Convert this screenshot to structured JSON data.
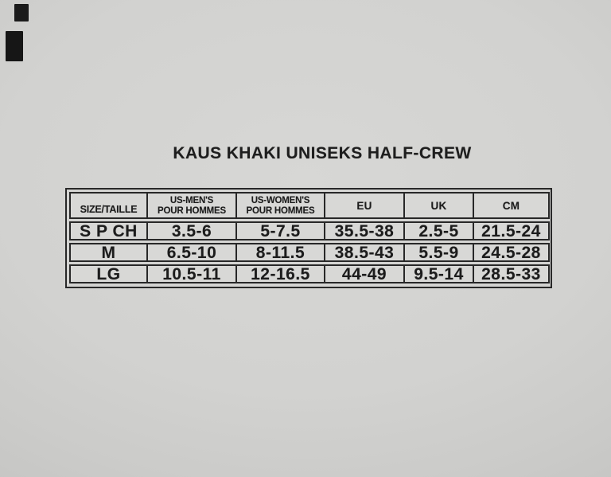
{
  "title": "KAUS KHAKI UNISEKS HALF-CREW",
  "table": {
    "headers": [
      {
        "line1": "SIZE/TAILLE",
        "line2": ""
      },
      {
        "line1": "US-MEN'S",
        "line2": "POUR HOMMES"
      },
      {
        "line1": "US-WOMEN'S",
        "line2": "POUR HOMMES"
      },
      {
        "line1": "EU",
        "line2": ""
      },
      {
        "line1": "UK",
        "line2": ""
      },
      {
        "line1": "CM",
        "line2": ""
      }
    ],
    "rows": [
      {
        "cells": [
          "S P CH",
          "3.5-6",
          "5-7.5",
          "35.5-38",
          "2.5-5",
          "21.5-24"
        ]
      },
      {
        "cells": [
          "M",
          "6.5-10",
          "8-11.5",
          "38.5-43",
          "5.5-9",
          "24.5-28"
        ]
      },
      {
        "cells": [
          "LG",
          "10.5-11",
          "12-16.5",
          "44-49",
          "9.5-14",
          "28.5-33"
        ]
      }
    ]
  },
  "colors": {
    "page_bg": "#d2d2d0",
    "cell_bg": "#d8d8d6",
    "line": "#282828",
    "text": "#1c1c1c",
    "scan_mark": "#1b1b1b"
  }
}
